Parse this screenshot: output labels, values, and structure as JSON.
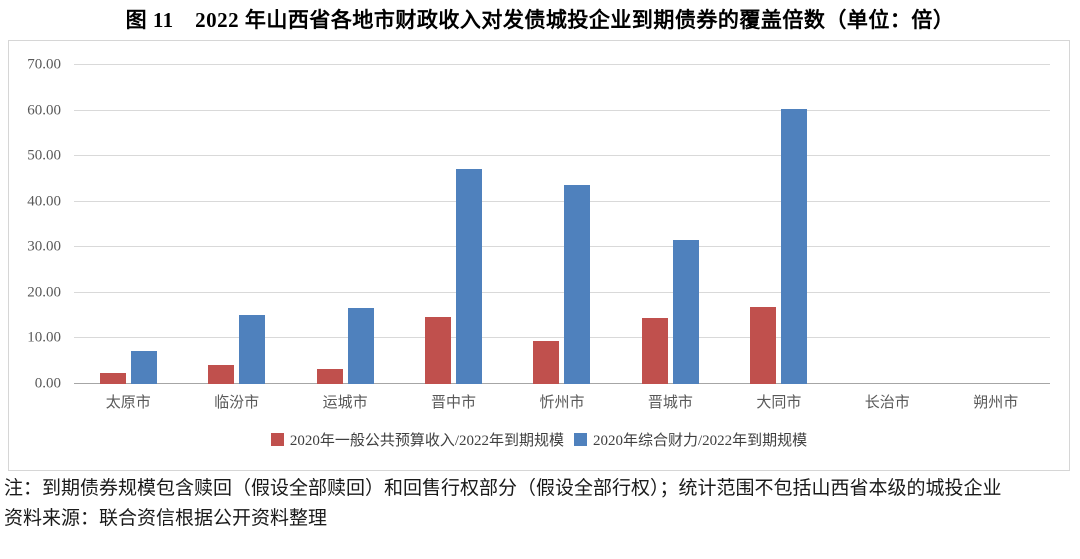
{
  "title": "图 11　2022 年山西省各地市财政收入对发债城投企业到期债券的覆盖倍数（单位：倍）",
  "chart_data": {
    "type": "bar",
    "categories": [
      "太原市",
      "临汾市",
      "运城市",
      "晋中市",
      "忻州市",
      "晋城市",
      "大同市",
      "长治市",
      "朔州市"
    ],
    "series": [
      {
        "name": "2020年一般公共预算收入/2022年到期规模",
        "color": "#C0504D",
        "values": [
          2.5,
          4.1,
          3.2,
          14.6,
          9.4,
          14.4,
          16.8,
          0,
          0
        ]
      },
      {
        "name": "2020年综合财力/2022年到期规模",
        "color": "#4F81BD",
        "values": [
          7.3,
          15.2,
          16.7,
          47.1,
          43.6,
          31.5,
          60.4,
          0,
          0
        ]
      }
    ],
    "title": "图 11　2022 年山西省各地市财政收入对发债城投企业到期债券的覆盖倍数（单位：倍）",
    "xlabel": "",
    "ylabel": "",
    "ylim": [
      0,
      70
    ],
    "ytick_step": 10,
    "ytick_labels": [
      "0.00",
      "10.00",
      "20.00",
      "30.00",
      "40.00",
      "50.00",
      "60.00",
      "70.00"
    ],
    "grid": true,
    "legend_position": "bottom"
  },
  "colors": {
    "series_red": "#C0504D",
    "series_blue": "#4F81BD",
    "gridline": "#d9d9d9",
    "axis_text": "#595959"
  },
  "notes": {
    "note_line": "注：到期债券规模包含赎回（假设全部赎回）和回售行权部分（假设全部行权）；统计范围不包括山西省本级的城投企业",
    "source_line": "资料来源：联合资信根据公开资料整理"
  }
}
